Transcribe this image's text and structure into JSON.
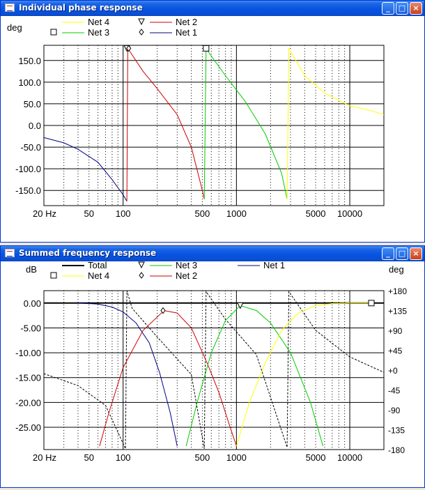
{
  "windows": [
    {
      "title": "Individual phase response",
      "controls": {
        "minimize": "_",
        "maximize": "□",
        "close": "×"
      }
    },
    {
      "title": "Summed frequency response",
      "controls": {
        "minimize": "_",
        "maximize": "□",
        "close": "×"
      }
    }
  ],
  "colors": {
    "net1": "#000080",
    "net2": "#cc0000",
    "net3": "#00cc00",
    "net4": "#ffff00",
    "total": "#000000",
    "titlebar": "#0554e3",
    "grid": "#000000"
  },
  "chart_data": [
    {
      "type": "line",
      "title": "Individual phase response",
      "ylabel": "deg",
      "x_scale": "log",
      "xlim": [
        20,
        20000
      ],
      "ylim": [
        -185,
        185
      ],
      "x_ticks": [
        "20 Hz",
        "50",
        "100",
        "500",
        "1000",
        "5000",
        "10000"
      ],
      "y_ticks": [
        "150.0",
        "100.0",
        "50.0",
        "0.0",
        "-50.0",
        "-100.0",
        "-150.0"
      ],
      "legend": [
        {
          "name": "Net 4",
          "marker": "none"
        },
        {
          "name": "Net 2",
          "marker": "triangle"
        },
        {
          "name": "Net 3",
          "marker": "square"
        },
        {
          "name": "Net 1",
          "marker": "diamond"
        }
      ],
      "series": [
        {
          "name": "Net 1",
          "x": [
            20,
            30,
            40,
            60,
            80,
            100,
            108
          ],
          "y": [
            -28,
            -40,
            -55,
            -85,
            -125,
            -160,
            -175
          ]
        },
        {
          "name": "Net 2",
          "x": [
            108,
            110,
            150,
            200,
            300,
            400,
            500,
            520
          ],
          "y": [
            -175,
            178,
            125,
            85,
            25,
            -50,
            -150,
            -170
          ]
        },
        {
          "name": "Net 3",
          "x": [
            520,
            540,
            600,
            800,
            1200,
            1800,
            2500,
            2800
          ],
          "y": [
            -170,
            178,
            160,
            115,
            55,
            -20,
            -110,
            -170
          ]
        },
        {
          "name": "Net 4",
          "x": [
            2800,
            2900,
            4000,
            6000,
            10000,
            15000,
            20000
          ],
          "y": [
            -170,
            178,
            115,
            75,
            45,
            35,
            25
          ]
        }
      ]
    },
    {
      "type": "line",
      "title": "Summed frequency response",
      "ylabel": "dB",
      "y2label": "deg",
      "x_scale": "log",
      "xlim": [
        20,
        20000
      ],
      "ylim": [
        -29.5,
        2.5
      ],
      "y2lim": [
        -180,
        180
      ],
      "x_ticks": [
        "20 Hz",
        "50",
        "100",
        "500",
        "1000",
        "5000",
        "10000"
      ],
      "y_ticks": [
        "0.00",
        "-5.00",
        "-10.00",
        "-15.00",
        "-20.00",
        "-25.00"
      ],
      "y2_ticks": [
        "+180",
        "+135",
        "+90",
        "+45",
        "+0",
        "-45",
        "-90",
        "-135",
        "-180"
      ],
      "legend": [
        {
          "name": "Total",
          "marker": "none"
        },
        {
          "name": "Net 3",
          "marker": "triangle"
        },
        {
          "name": "Net 1",
          "marker": "none"
        },
        {
          "name": "Net 4",
          "marker": "square"
        },
        {
          "name": "Net 2",
          "marker": "diamond"
        }
      ],
      "series": [
        {
          "name": "Total",
          "x": [
            20,
            20000
          ],
          "y": [
            0,
            0
          ]
        },
        {
          "name": "Net 1",
          "x": [
            40,
            60,
            80,
            100,
            130,
            170,
            210,
            260,
            300
          ],
          "y": [
            0,
            -0.2,
            -0.8,
            -1.8,
            -4,
            -8,
            -14,
            -22,
            -28.8
          ]
        },
        {
          "name": "Net 2",
          "x": [
            62,
            75,
            100,
            150,
            230,
            300,
            400,
            550,
            700,
            880,
            1000
          ],
          "y": [
            -28.8,
            -22,
            -13,
            -5.5,
            -1.5,
            -2,
            -5,
            -12,
            -18,
            -25,
            -28.8
          ]
        },
        {
          "name": "Net 3",
          "x": [
            360,
            450,
            600,
            800,
            1080,
            1500,
            2000,
            3000,
            4500,
            5800
          ],
          "y": [
            -28.8,
            -20,
            -10,
            -3.5,
            -0.5,
            -1.5,
            -4,
            -10,
            -20,
            -28.8
          ]
        },
        {
          "name": "Net 4",
          "x": [
            1000,
            1300,
            1800,
            2500,
            3500,
            5000,
            7000,
            10000,
            15000
          ],
          "y": [
            -28.8,
            -20,
            -12,
            -5.5,
            -2,
            -0.5,
            -0.1,
            0,
            0
          ]
        }
      ],
      "phase_series": [
        {
          "name": "Total phase",
          "style": "dashed",
          "x": [
            20,
            40,
            70,
            105,
            108,
            120,
            200,
            400,
            520,
            540,
            800,
            1500,
            2800,
            2900,
            5000,
            10000,
            20000
          ],
          "y": [
            -8,
            -35,
            -80,
            -178,
            180,
            140,
            75,
            -10,
            -178,
            178,
            115,
            35,
            -175,
            178,
            90,
            30,
            -5
          ]
        }
      ]
    }
  ]
}
